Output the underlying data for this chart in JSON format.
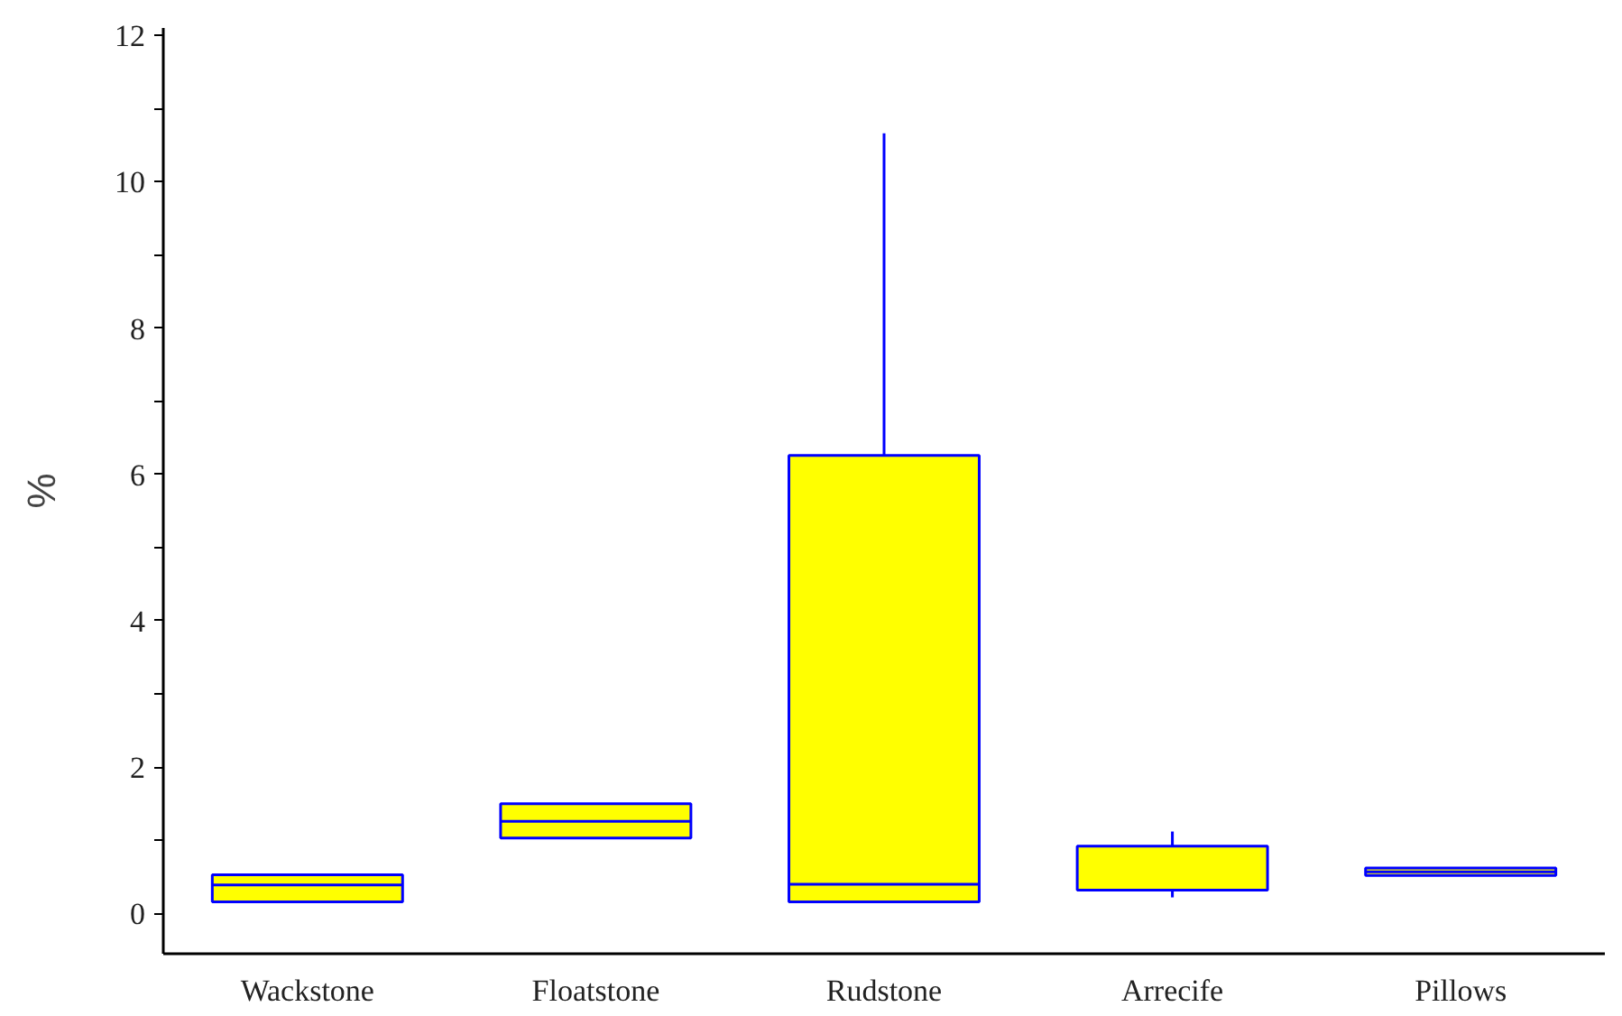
{
  "chart_data": {
    "type": "box",
    "ylabel": "%",
    "categories": [
      "Wackstone",
      "Floatstone",
      "Rudstone",
      "Arrecife",
      "Pillows"
    ],
    "boxes": [
      {
        "low": 0.16,
        "q1": 0.16,
        "median": 0.39,
        "q3": 0.53,
        "high": 0.53
      },
      {
        "low": 1.03,
        "q1": 1.03,
        "median": 1.26,
        "q3": 1.5,
        "high": 1.5
      },
      {
        "low": 0.16,
        "q1": 0.16,
        "median": 0.4,
        "q3": 6.26,
        "high": 10.66
      },
      {
        "low": 0.22,
        "q1": 0.32,
        "median": 0.32,
        "q3": 0.92,
        "high": 1.12
      },
      {
        "low": 0.52,
        "q1": 0.52,
        "median": 0.57,
        "q3": 0.62,
        "high": 0.62
      }
    ],
    "color": "#ffff00",
    "ylim": [
      -0.55,
      12.1
    ],
    "yticks": [
      0,
      {
        "value": 1,
        "label": null
      },
      2,
      {
        "value": 3,
        "label": null
      },
      4,
      {
        "value": 5,
        "label": null
      },
      6,
      {
        "value": 7,
        "label": null
      },
      8,
      {
        "value": 9,
        "label": null
      },
      10,
      {
        "value": 11,
        "label": null
      },
      12
    ],
    "grid": false
  }
}
